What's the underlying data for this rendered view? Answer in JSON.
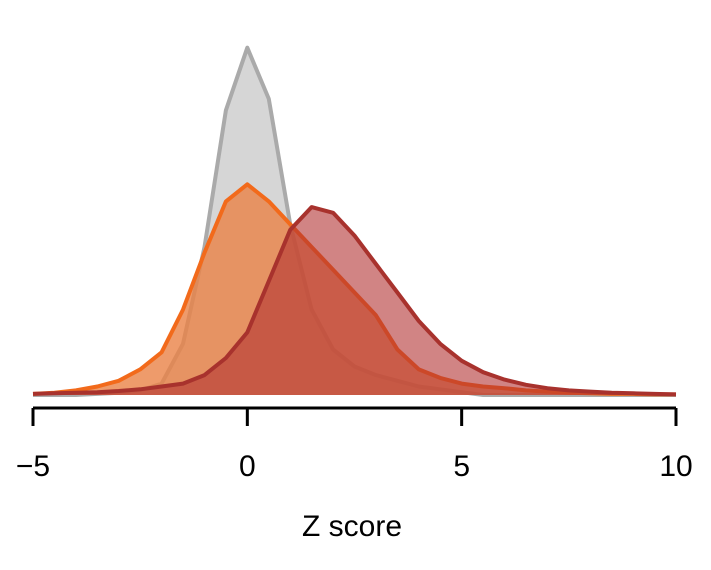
{
  "chart_data": {
    "type": "area",
    "xlabel": "Z score",
    "x": [
      -5,
      -4.5,
      -4,
      -3.5,
      -3,
      -2.5,
      -2,
      -1.5,
      -1,
      -0.5,
      0,
      0.5,
      1,
      1.5,
      2,
      2.5,
      3,
      3.5,
      4,
      4.5,
      5,
      5.5,
      6,
      6.5,
      7,
      7.5,
      8,
      8.5,
      9,
      9.5,
      10
    ],
    "series": [
      {
        "color": "#aaaaaa",
        "values": [
          0,
          0,
          0,
          0.002,
          0.004,
          0.008,
          0.02,
          0.09,
          0.26,
          0.5,
          0.61,
          0.52,
          0.3,
          0.15,
          0.08,
          0.05,
          0.035,
          0.025,
          0.015,
          0.01,
          0.005,
          0,
          0,
          0,
          0,
          0,
          0,
          0,
          0,
          0,
          0
        ]
      },
      {
        "color": "#f26a1b",
        "values": [
          0.002,
          0.004,
          0.008,
          0.015,
          0.025,
          0.045,
          0.075,
          0.15,
          0.25,
          0.34,
          0.37,
          0.34,
          0.3,
          0.26,
          0.22,
          0.18,
          0.14,
          0.08,
          0.045,
          0.03,
          0.02,
          0.015,
          0.012,
          0.008,
          0.006,
          0.004,
          0.003,
          0.002,
          0.002,
          0.001,
          0.001
        ]
      },
      {
        "color": "#a8322d",
        "values": [
          0.002,
          0.003,
          0.004,
          0.005,
          0.007,
          0.01,
          0.015,
          0.02,
          0.035,
          0.065,
          0.11,
          0.2,
          0.29,
          0.33,
          0.32,
          0.28,
          0.23,
          0.18,
          0.13,
          0.09,
          0.06,
          0.04,
          0.027,
          0.018,
          0.012,
          0.008,
          0.006,
          0.004,
          0.003,
          0.002,
          0.001
        ]
      }
    ],
    "xlim": [
      -5,
      10
    ],
    "xticks": [
      {
        "value": -5,
        "label": "−5"
      },
      0,
      5,
      10
    ],
    "ylim": [
      0,
      0.62
    ]
  }
}
